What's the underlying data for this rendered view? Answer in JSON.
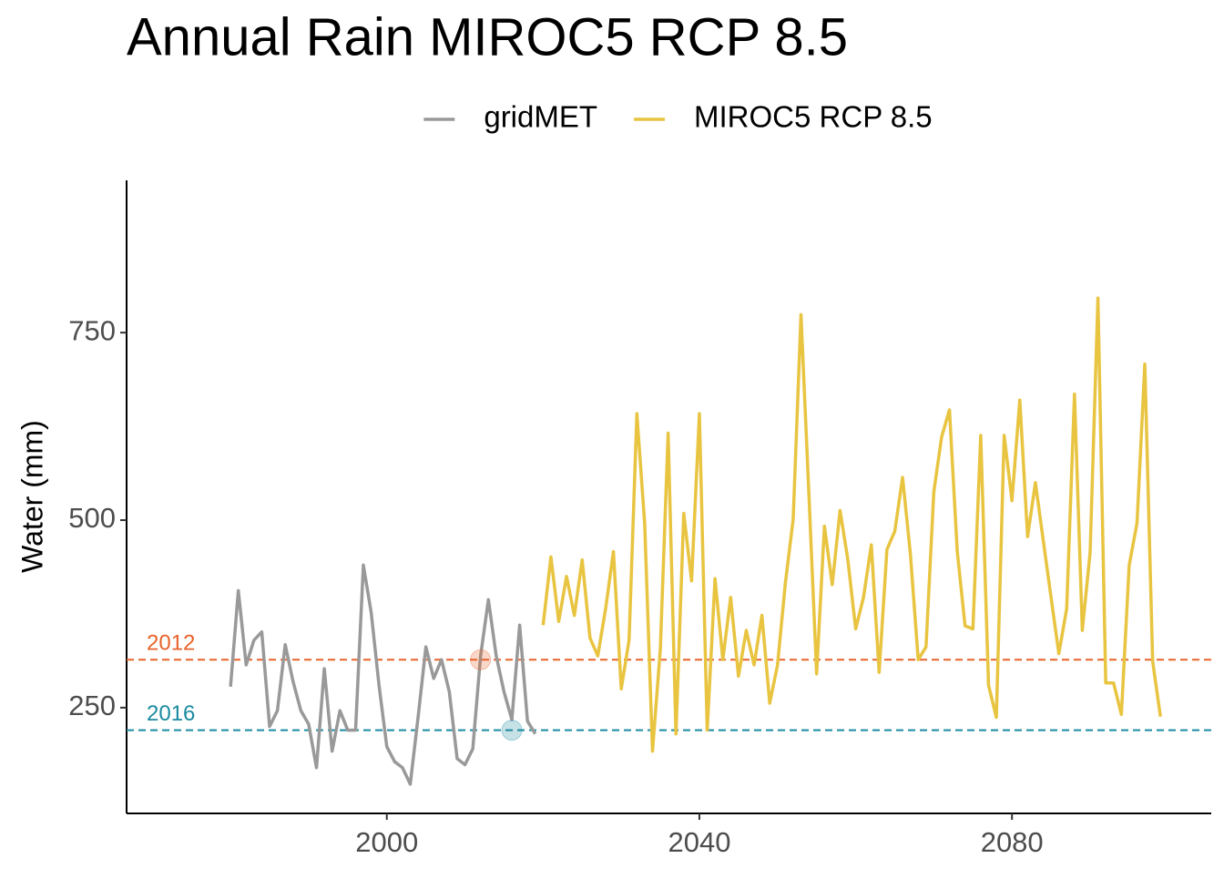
{
  "chart_data": {
    "type": "line",
    "title": "Annual Rain MIROC5 RCP 8.5",
    "y_label": "Water (mm)",
    "xlim": [
      1966.7,
      2105.5
    ],
    "xticks": [
      2000,
      2040,
      2080
    ],
    "ylim": [
      109,
      953
    ],
    "yticks": [
      250,
      500,
      750
    ],
    "grid": false,
    "legend_position": "top",
    "series": [
      {
        "name": "gridMET",
        "color": "#999999",
        "x": [
          1980,
          1981,
          1982,
          1983,
          1984,
          1985,
          1986,
          1987,
          1988,
          1989,
          1990,
          1991,
          1992,
          1993,
          1994,
          1995,
          1996,
          1997,
          1998,
          1999,
          2000,
          2001,
          2002,
          2003,
          2004,
          2005,
          2006,
          2007,
          2008,
          2009,
          2010,
          2011,
          2012,
          2013,
          2014,
          2015,
          2016,
          2017,
          2018,
          2019
        ],
        "values": [
          278,
          406,
          307,
          340,
          351,
          225,
          246,
          334,
          285,
          246,
          228,
          170,
          302,
          192,
          246,
          220,
          220,
          440,
          377,
          280,
          198,
          178,
          170,
          148,
          237,
          331,
          289,
          314,
          271,
          182,
          174,
          195,
          319,
          394,
          319,
          271,
          234,
          360,
          232,
          215
        ]
      },
      {
        "name": "MIROC5 RCP 8.5",
        "color": "#e8c440",
        "x": [
          2020,
          2021,
          2022,
          2023,
          2024,
          2025,
          2026,
          2027,
          2028,
          2029,
          2030,
          2031,
          2032,
          2033,
          2034,
          2035,
          2036,
          2037,
          2038,
          2039,
          2040,
          2041,
          2042,
          2043,
          2044,
          2045,
          2046,
          2047,
          2048,
          2049,
          2050,
          2051,
          2052,
          2053,
          2054,
          2055,
          2056,
          2057,
          2058,
          2059,
          2060,
          2061,
          2062,
          2063,
          2064,
          2065,
          2066,
          2067,
          2068,
          2069,
          2070,
          2071,
          2072,
          2073,
          2074,
          2075,
          2076,
          2077,
          2078,
          2079,
          2080,
          2081,
          2082,
          2083,
          2084,
          2085,
          2086,
          2087,
          2088,
          2089,
          2090,
          2091,
          2092,
          2093,
          2094,
          2095,
          2096,
          2097,
          2098,
          2099
        ],
        "values": [
          360,
          451,
          365,
          425,
          373,
          447,
          343,
          319,
          382,
          458,
          275,
          340,
          642,
          495,
          192,
          328,
          616,
          215,
          509,
          419,
          642,
          220,
          422,
          314,
          397,
          292,
          353,
          307,
          373,
          256,
          307,
          416,
          501,
          774,
          538,
          295,
          492,
          414,
          513,
          447,
          355,
          397,
          467,
          297,
          461,
          485,
          557,
          455,
          314,
          331,
          538,
          611,
          647,
          458,
          359,
          355,
          613,
          280,
          237,
          613,
          526,
          660,
          478,
          550,
          473,
          397,
          322,
          382,
          668,
          353,
          457,
          796,
          283,
          283,
          241,
          440,
          496,
          708,
          312,
          238
        ]
      }
    ],
    "reference_lines": [
      {
        "label": "2012",
        "x": 2012,
        "value": 314,
        "color": "#e8622a"
      },
      {
        "label": "2016",
        "x": 2016,
        "value": 220,
        "color": "#1a8aa0"
      }
    ]
  }
}
